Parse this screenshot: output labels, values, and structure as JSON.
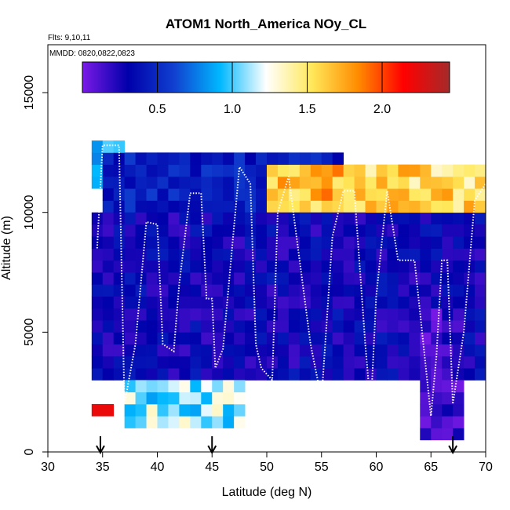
{
  "chart_data": {
    "type": "heatmap",
    "title": "ATOM1 North_America NOy_CL",
    "annotations": [
      "Flts: 9,10,11",
      "MMDD: 0820,0822,0823"
    ],
    "xlabel": "Latitude (deg N)",
    "ylabel": "Altitude (m)",
    "xlim": [
      30,
      70
    ],
    "ylim": [
      0,
      17000
    ],
    "xticks": [
      30,
      35,
      40,
      45,
      50,
      55,
      60,
      65,
      70
    ],
    "yticks": [
      0,
      5000,
      10000,
      15000
    ],
    "colorbar": {
      "range": [
        0,
        2.45
      ],
      "ticks": [
        0.5,
        1.0,
        1.5,
        2.0
      ],
      "tick_labels": [
        "0.5",
        "1.0",
        "1.5",
        "2.0"
      ],
      "colors": [
        "#7a1ae6",
        "#0000aa",
        "#1040d0",
        "#00b8ff",
        "#ffffff",
        "#ffe85a",
        "#ff8c00",
        "#ff0000",
        "#a52a2a"
      ]
    },
    "flight_arrows_latitude": [
      34.8,
      45.0,
      67.0
    ],
    "profile_regions": [
      {
        "lat": [
          34.6,
          36.8
        ],
        "alt": [
          11000,
          12800
        ],
        "value": 0.9
      },
      {
        "lat": [
          35.0,
          57.0
        ],
        "alt": [
          10000,
          12500
        ],
        "value": 0.45
      },
      {
        "lat": [
          50.0,
          59.0
        ],
        "alt": [
          10000,
          12000
        ],
        "value": 1.7
      },
      {
        "lat": [
          59.0,
          70.0
        ],
        "alt": [
          9500,
          11800
        ],
        "value": 1.55
      },
      {
        "lat": [
          34.0,
          70.0
        ],
        "alt": [
          3000,
          10000
        ],
        "value": 0.3
      },
      {
        "lat": [
          64.0,
          68.0
        ],
        "alt": [
          500,
          6000
        ],
        "value": 0.15
      },
      {
        "lat": [
          37.0,
          48.0
        ],
        "alt": [
          1000,
          3000
        ],
        "value": 1.1
      },
      {
        "lat": [
          34.5,
          36.0
        ],
        "alt": [
          1500,
          2000
        ],
        "value": 2.35
      }
    ],
    "flight_track": [
      [
        34.5,
        8500
      ],
      [
        35.0,
        12800
      ],
      [
        36.5,
        12800
      ],
      [
        37.0,
        2000
      ],
      [
        38.0,
        4500
      ],
      [
        39.0,
        9600
      ],
      [
        40.0,
        9500
      ],
      [
        40.5,
        4500
      ],
      [
        41.5,
        4200
      ],
      [
        42.0,
        7000
      ],
      [
        43.0,
        10800
      ],
      [
        44.0,
        10800
      ],
      [
        44.5,
        6400
      ],
      [
        45.0,
        6400
      ],
      [
        45.3,
        3500
      ],
      [
        46.0,
        4300
      ],
      [
        47.5,
        11900
      ],
      [
        48.5,
        11200
      ],
      [
        49.0,
        4500
      ],
      [
        49.5,
        3500
      ],
      [
        50.5,
        3000
      ],
      [
        51.0,
        10000
      ],
      [
        52.0,
        11500
      ],
      [
        53.0,
        8000
      ],
      [
        54.0,
        4500
      ],
      [
        55.0,
        2200
      ],
      [
        56.0,
        9000
      ],
      [
        57.0,
        10900
      ],
      [
        58.0,
        10900
      ],
      [
        59.0,
        4500
      ],
      [
        59.5,
        1800
      ],
      [
        60.0,
        6500
      ],
      [
        61.0,
        10900
      ],
      [
        62.0,
        8000
      ],
      [
        63.5,
        8000
      ],
      [
        65.0,
        1500
      ],
      [
        65.5,
        4000
      ],
      [
        66.0,
        8000
      ],
      [
        66.5,
        8000
      ],
      [
        67.0,
        2000
      ],
      [
        68.0,
        5000
      ],
      [
        69.0,
        10500
      ],
      [
        70.0,
        11200
      ]
    ]
  }
}
